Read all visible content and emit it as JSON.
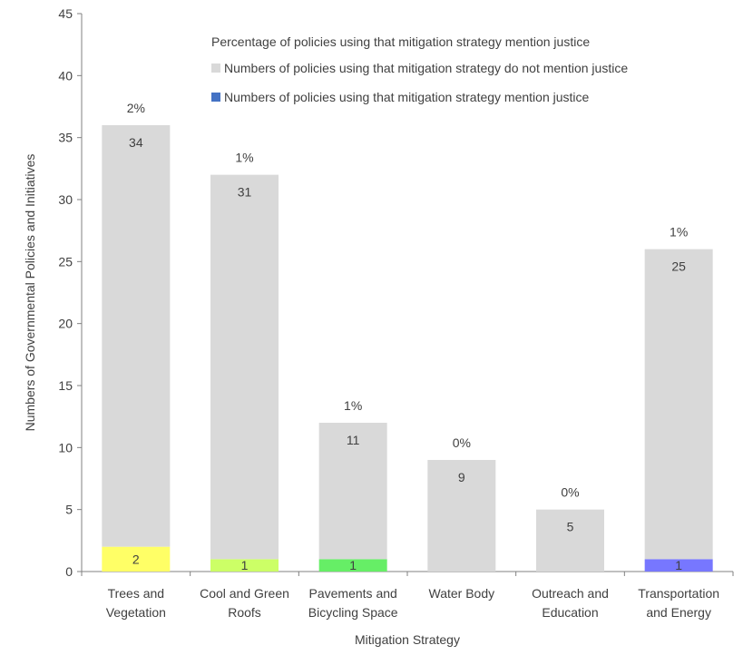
{
  "chart_data": {
    "type": "bar",
    "stacked": true,
    "xlabel": "Mitigation Strategy",
    "ylabel": "Numbers of Governmental Policies and Initiatives",
    "ylim": [
      0,
      45
    ],
    "yticks": [
      0,
      5,
      10,
      15,
      20,
      25,
      30,
      35,
      40,
      45
    ],
    "grid": false,
    "legend_position": "top-right",
    "categories": [
      [
        "Trees and",
        "Vegetation"
      ],
      [
        "Cool and Green",
        "Roofs"
      ],
      [
        "Pavements and",
        "Bicycling Space"
      ],
      [
        "Water Body"
      ],
      [
        "Outreach and",
        "Education"
      ],
      [
        "Transportation",
        "and Energy"
      ]
    ],
    "series": [
      {
        "name": "Numbers of policies using that mitigation strategy mention justice",
        "values": [
          2,
          1,
          1,
          0,
          0,
          1
        ],
        "labels": [
          "2",
          "1",
          "1",
          "",
          "",
          "1"
        ],
        "colors": [
          "#ffff66",
          "#ccff66",
          "#66ee66",
          "#cccccc",
          "#cccccc",
          "#7777ff"
        ],
        "legend_color": "#4472c4"
      },
      {
        "name": "Numbers of policies using that mitigation strategy do not mention justice",
        "values": [
          34,
          31,
          11,
          9,
          5,
          25
        ],
        "labels": [
          "34",
          "31",
          "11",
          "9",
          "5",
          "25"
        ],
        "color": "#d9d9d9"
      }
    ],
    "percentage_series": {
      "name": "Percentage of policies using that mitigation strategy mention justice",
      "labels": [
        "2%",
        "1%",
        "1%",
        "0%",
        "0%",
        "1%"
      ]
    },
    "legend_order": [
      "Percentage of policies using that mitigation strategy mention justice",
      "Numbers of policies using that mitigation strategy do not mention justice",
      "Numbers of policies using that mitigation strategy mention justice"
    ]
  }
}
